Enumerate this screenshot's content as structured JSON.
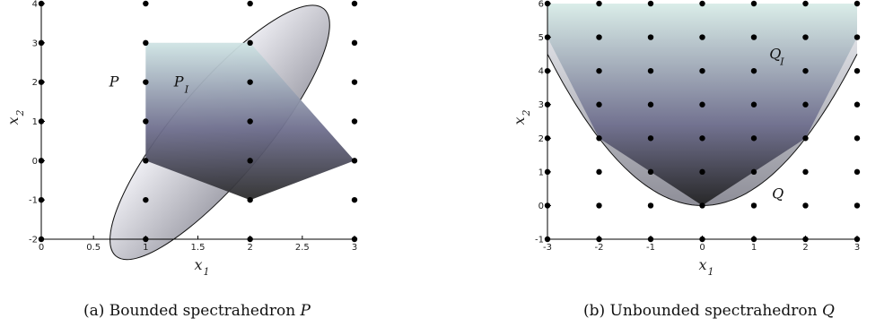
{
  "chart_data": [
    {
      "type": "scatter",
      "caption": "(a) Bounded spectrahedron P",
      "caption_main": "(a) Bounded spectrahedron",
      "caption_symbol": "P",
      "xlabel": "x",
      "xlabel_sub": "1",
      "ylabel": "x",
      "ylabel_sub": "2",
      "xlim": [
        0,
        3
      ],
      "ylim": [
        -2,
        4
      ],
      "xticks": [
        "0",
        "0.5",
        "1",
        "1.5",
        "2",
        "2.5",
        "3"
      ],
      "yticks": [
        "-2",
        "-1",
        "0",
        "1",
        "2",
        "3",
        "4"
      ],
      "grid": false,
      "regions": [
        {
          "label": "P",
          "label_sub": "",
          "label_at": [
            0.65,
            2.0
          ],
          "shape": "ellipse",
          "center": [
            1.71,
            0.72
          ],
          "semi_axes": [
            1.63,
            1.9
          ],
          "rotation_deg": -50,
          "gradient": [
            "#f2f2f7",
            "#a6a6b0"
          ]
        },
        {
          "label": "P",
          "label_sub": "I",
          "label_at": [
            1.27,
            2.0
          ],
          "shape": "polygon",
          "vertices": [
            [
              1,
              0
            ],
            [
              1,
              3
            ],
            [
              2,
              3
            ],
            [
              3,
              0
            ],
            [
              2,
              -1
            ]
          ],
          "gradient": [
            "#cfe4e4",
            "#6f6f8e",
            "#2c2c2c"
          ]
        }
      ],
      "lattice_x": [
        0,
        1,
        2,
        3
      ],
      "lattice_y": [
        -2,
        -1,
        0,
        1,
        2,
        3,
        4
      ]
    },
    {
      "type": "scatter",
      "caption": "(b) Unbounded spectrahedron Q",
      "caption_main": "(b) Unbounded spectrahedron",
      "caption_symbol": "Q",
      "xlabel": "x",
      "xlabel_sub": "1",
      "ylabel": "x",
      "ylabel_sub": "2",
      "xlim": [
        -3,
        3
      ],
      "ylim": [
        -1,
        6
      ],
      "xticks": [
        "-3",
        "-2",
        "-1",
        "0",
        "1",
        "2",
        "3"
      ],
      "yticks": [
        "-1",
        "0",
        "1",
        "2",
        "3",
        "4",
        "5",
        "6"
      ],
      "grid": false,
      "regions": [
        {
          "label": "Q",
          "label_sub": "",
          "label_at": [
            1.35,
            0.35
          ],
          "shape": "curve",
          "boundary": "x2 = x1^2 / 2",
          "gradient": [
            "#f2f2f7",
            "#a6a6b0"
          ]
        },
        {
          "label": "Q",
          "label_sub": "I",
          "label_at": [
            1.3,
            4.5
          ],
          "shape": "polygon",
          "vertices": [
            [
              -3,
              6
            ],
            [
              -3,
              5
            ],
            [
              -2,
              2
            ],
            [
              0,
              0
            ],
            [
              2,
              2
            ],
            [
              3,
              5
            ],
            [
              3,
              6
            ]
          ],
          "gradient": [
            "#d7ebe6",
            "#6f6f8e",
            "#2a2a2a"
          ]
        }
      ],
      "lattice_x": [
        -3,
        -2,
        -1,
        0,
        1,
        2,
        3
      ],
      "lattice_y": [
        -1,
        0,
        1,
        2,
        3,
        4,
        5,
        6
      ]
    }
  ]
}
